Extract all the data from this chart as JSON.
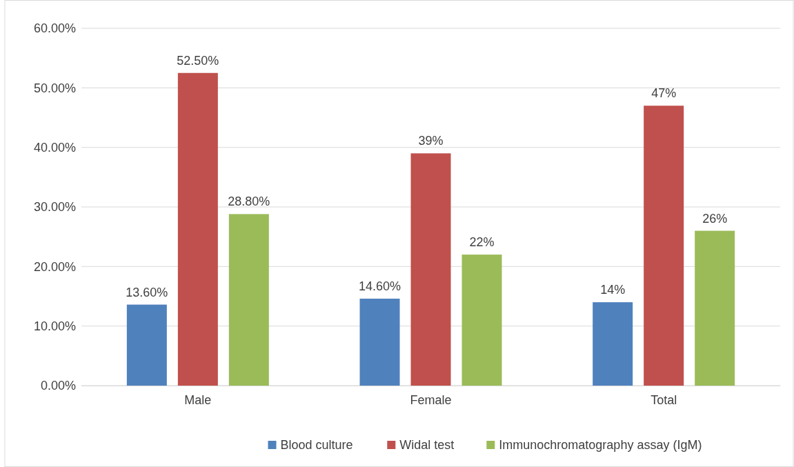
{
  "chart_data": {
    "type": "bar",
    "categories": [
      "Male",
      "Female",
      "Total"
    ],
    "series": [
      {
        "name": "Blood culture",
        "color": "#4f81bd",
        "values": [
          13.6,
          14.6,
          14
        ],
        "value_labels": [
          "13.60%",
          "14.60%",
          "14%"
        ]
      },
      {
        "name": "Widal test",
        "color": "#c0504d",
        "values": [
          52.5,
          39,
          47
        ],
        "value_labels": [
          "52.50%",
          "39%",
          "47%"
        ]
      },
      {
        "name": "Immunochromatography assay (IgM)",
        "color": "#9bbb59",
        "values": [
          28.8,
          22,
          26
        ],
        "value_labels": [
          "28.80%",
          "22%",
          "26%"
        ]
      }
    ],
    "ylim": [
      0,
      60
    ],
    "yticks": [
      {
        "value": 0,
        "label": "0.00%"
      },
      {
        "value": 10,
        "label": "10.00%"
      },
      {
        "value": 20,
        "label": "20.00%"
      },
      {
        "value": 30,
        "label": "30.00%"
      },
      {
        "value": 40,
        "label": "40.00%"
      },
      {
        "value": 50,
        "label": "50.00%"
      },
      {
        "value": 60,
        "label": "60.00%"
      }
    ],
    "grid": "y",
    "legend": "bottom"
  }
}
